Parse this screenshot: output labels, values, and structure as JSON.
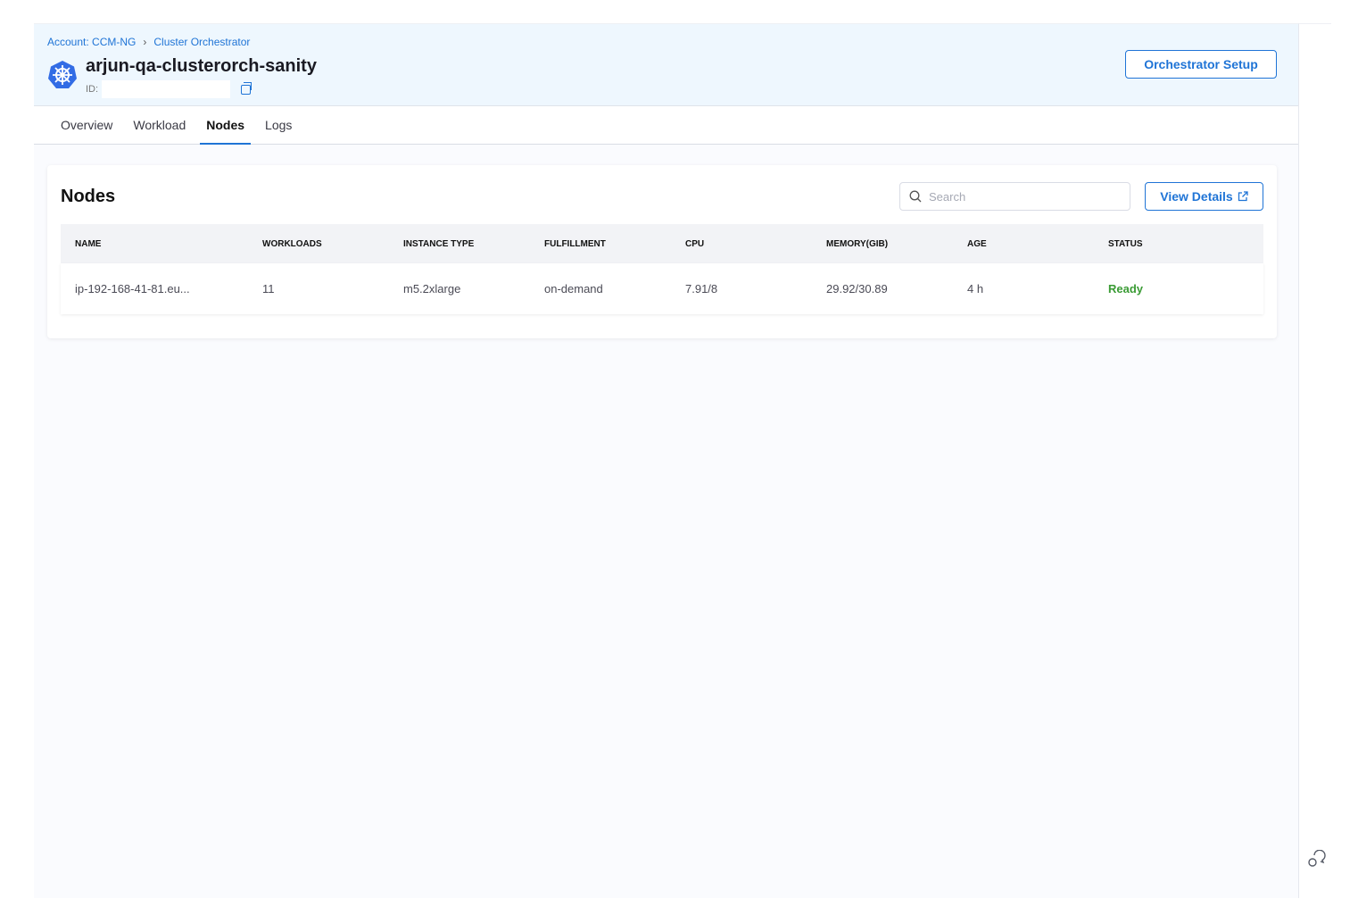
{
  "breadcrumbs": [
    "Account: CCM-NG",
    "Cluster Orchestrator"
  ],
  "cluster": {
    "name": "arjun-qa-clusterorch-sanity",
    "id_label": "ID:"
  },
  "header": {
    "setup_button": "Orchestrator Setup"
  },
  "tabs": [
    {
      "label": "Overview"
    },
    {
      "label": "Workload"
    },
    {
      "label": "Nodes",
      "active": true
    },
    {
      "label": "Logs"
    }
  ],
  "nodes": {
    "title": "Nodes",
    "search_placeholder": "Search",
    "view_details": "View Details",
    "columns": [
      "NAME",
      "WORKLOADS",
      "INSTANCE TYPE",
      "FULFILLMENT",
      "CPU",
      "MEMORY(GIB)",
      "AGE",
      "STATUS"
    ],
    "rows": [
      [
        "ip-192-168-41-81.eu...",
        "11",
        "m5.2xlarge",
        "on-demand",
        "7.91/8",
        "29.92/30.89",
        "4 h",
        "Ready"
      ]
    ]
  },
  "colors": {
    "accent": "#1f74d6",
    "ready": "#3a9b34"
  }
}
